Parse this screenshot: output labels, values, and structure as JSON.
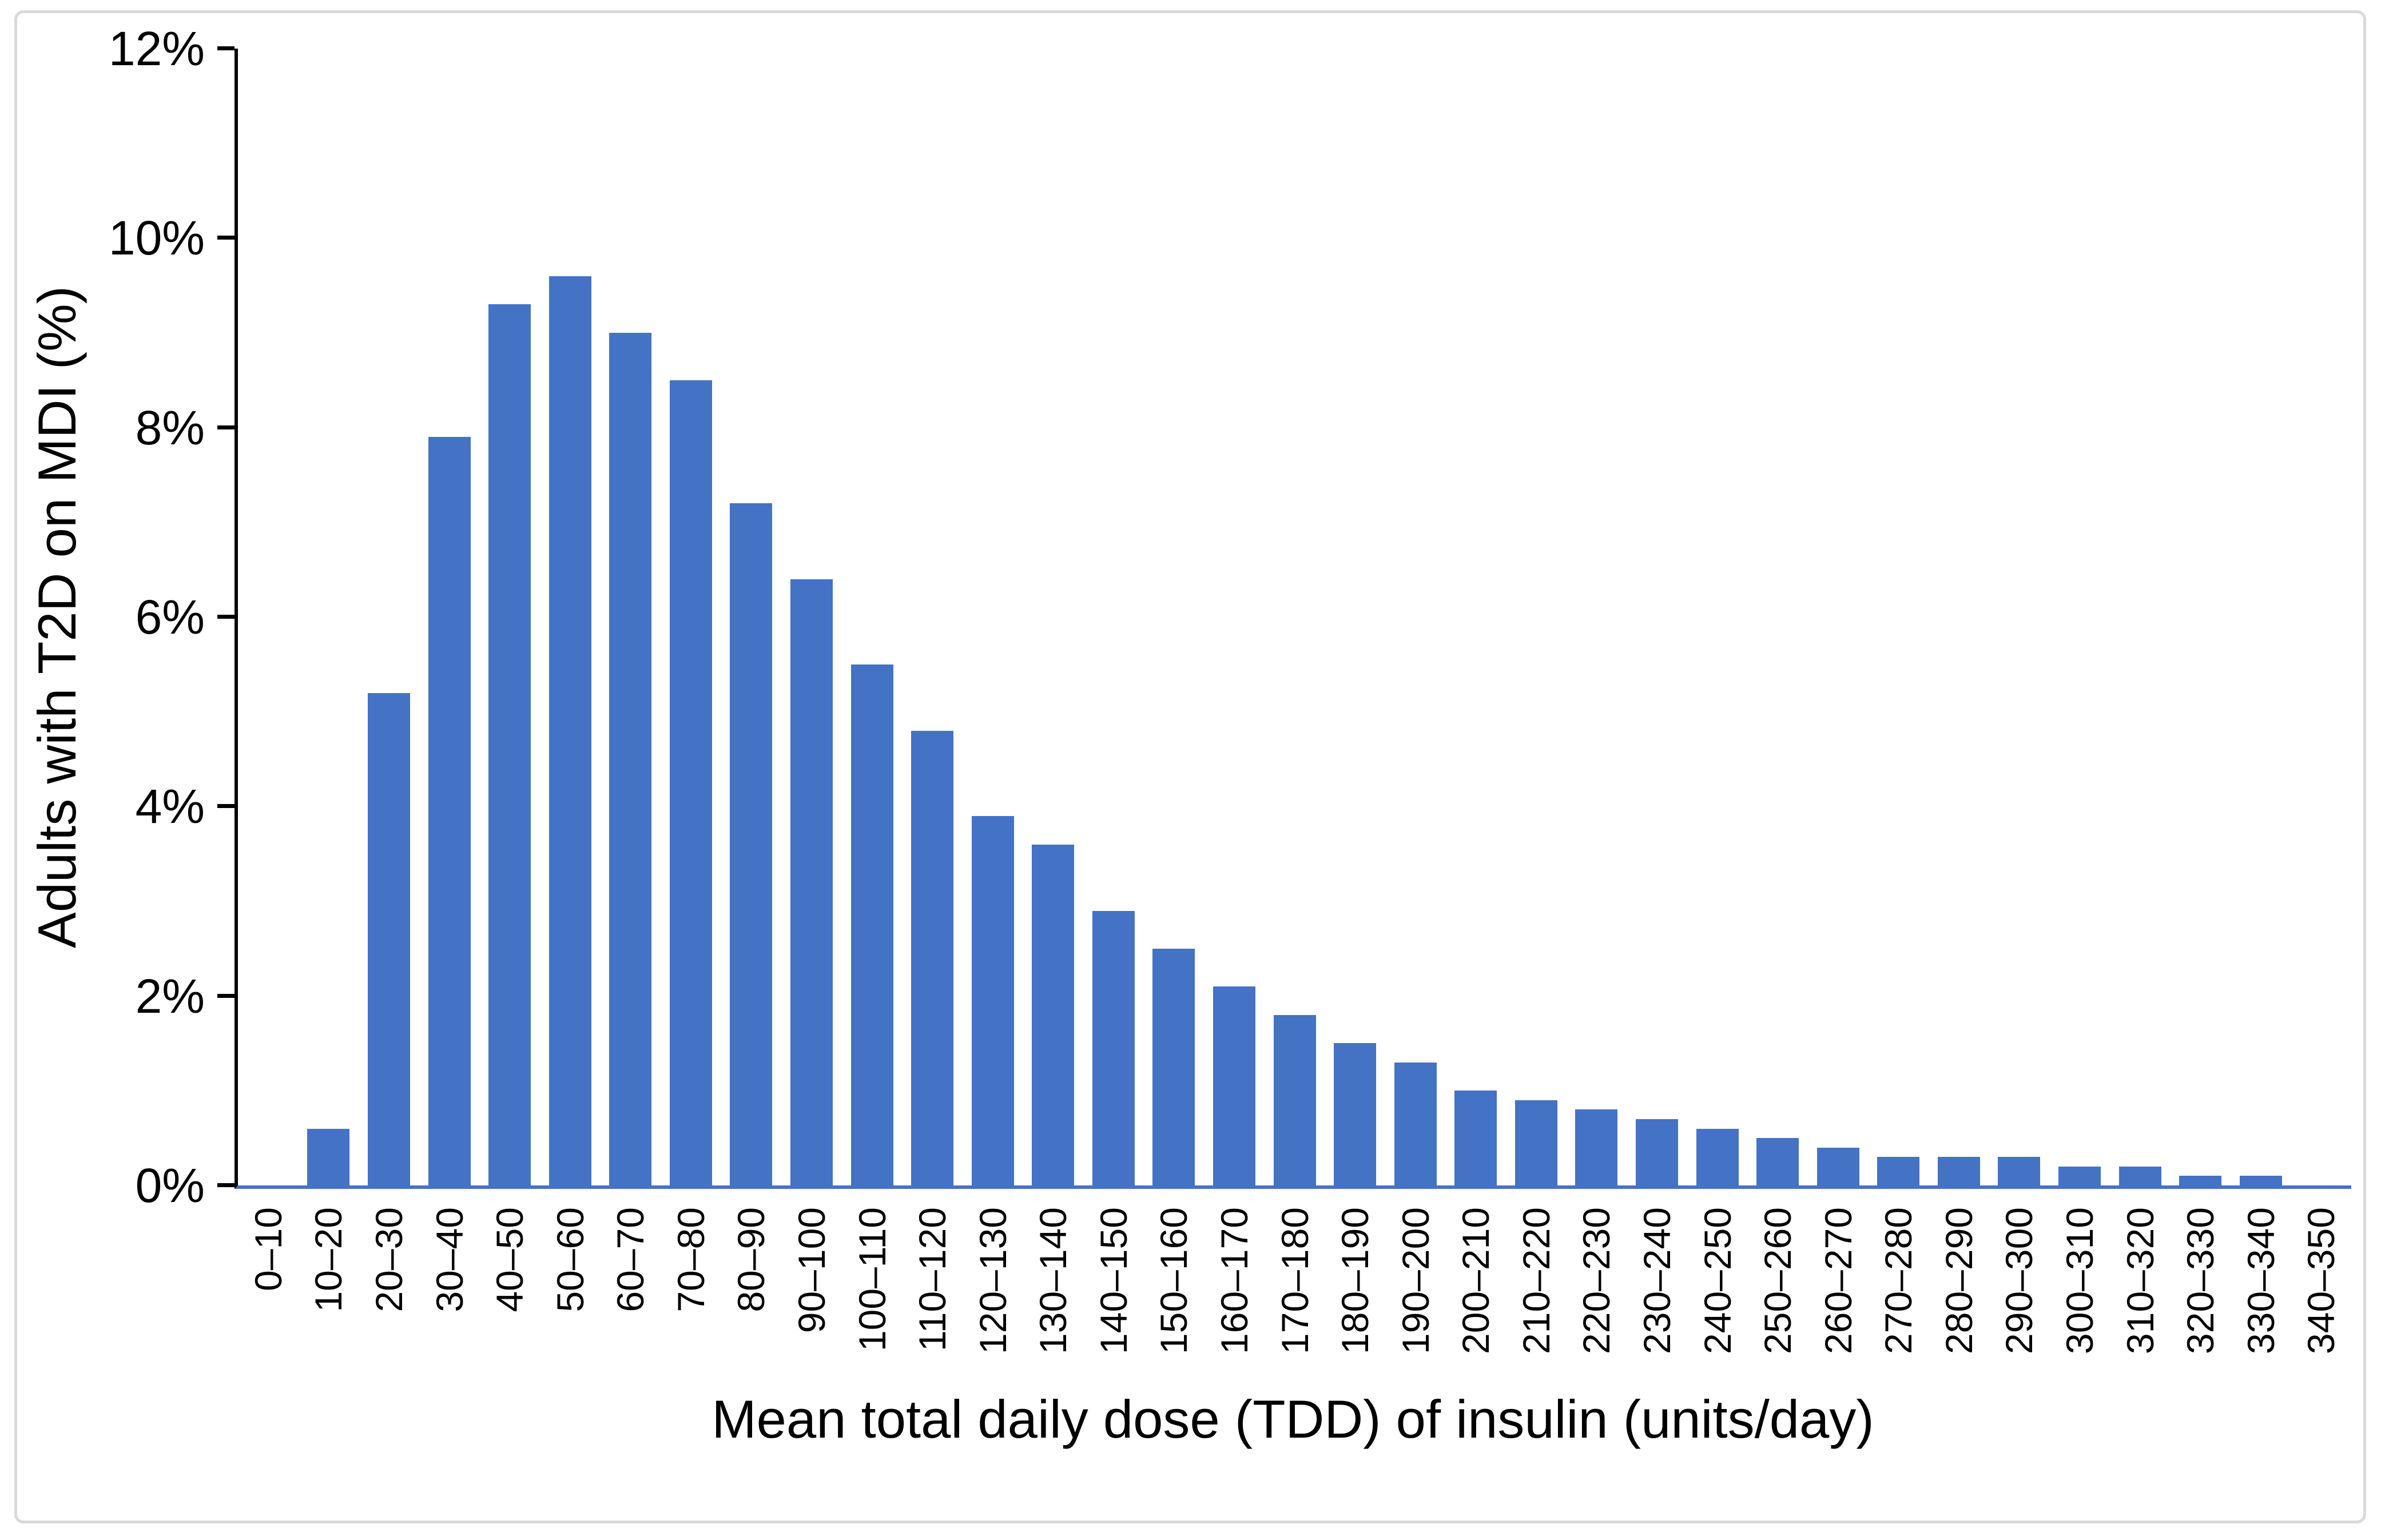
{
  "chart_data": {
    "type": "bar",
    "title": "",
    "xlabel": "Mean total daily dose (TDD) of insulin (units/day)",
    "ylabel": "Adults with T2D on MDI (%)",
    "categories": [
      "0–10",
      "10–20",
      "20–30",
      "30–40",
      "40–50",
      "50–60",
      "60–70",
      "70–80",
      "80–90",
      "90–100",
      "100–110",
      "110–120",
      "120–130",
      "130–140",
      "140–150",
      "150–160",
      "160–170",
      "170–180",
      "180–190",
      "190–200",
      "200–210",
      "210–220",
      "220–230",
      "230–240",
      "240–250",
      "250–260",
      "260–270",
      "270–280",
      "280–290",
      "290–300",
      "300–310",
      "310–320",
      "320–330",
      "330–340",
      "340–350"
    ],
    "values": [
      0.0,
      0.6,
      5.2,
      7.9,
      9.3,
      9.6,
      9.0,
      8.5,
      7.2,
      6.4,
      5.5,
      4.8,
      3.9,
      3.6,
      2.9,
      2.5,
      2.1,
      1.8,
      1.5,
      1.3,
      1.0,
      0.9,
      0.8,
      0.7,
      0.6,
      0.5,
      0.4,
      0.3,
      0.3,
      0.3,
      0.2,
      0.2,
      0.1,
      0.1,
      0.0
    ],
    "ylim": [
      0,
      12
    ],
    "ytick_step": 2,
    "ytick_labels": [
      "0%",
      "2%",
      "4%",
      "6%",
      "8%",
      "10%",
      "12%"
    ],
    "x_tick_label_rotation_deg": 90,
    "grid": false,
    "legend": "none",
    "bar_color": "#4472C4",
    "x_axis_color": "#4472C4",
    "y_axis_color": "#000000",
    "frame_border_color": "#D9D9D9",
    "background_color": "#FFFFFF"
  }
}
